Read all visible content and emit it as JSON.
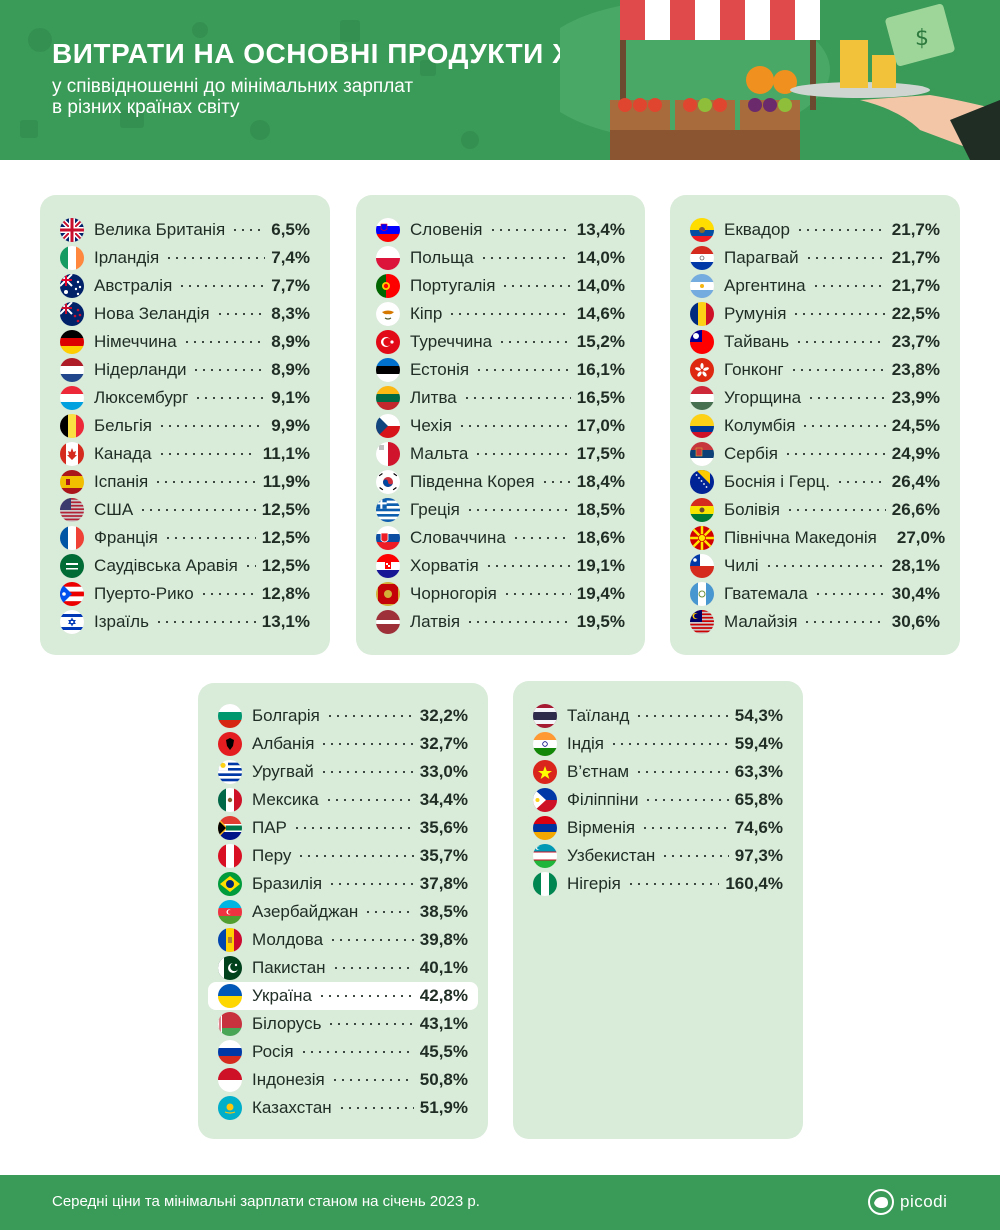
{
  "header": {
    "title": "ВИТРАТИ НА ОСНОВНІ ПРОДУКТИ ХАРЧУВАННЯ",
    "subtitle_line1": "у співвідношенні до мінімальних зарплат",
    "subtitle_line2": "в різних країнах світу"
  },
  "colors": {
    "accent": "#3a9a57",
    "card": "#d9ebd9",
    "text": "#1f2d25"
  },
  "cards": [
    {
      "items": [
        {
          "name": "Велика Британія",
          "value": "6,5%",
          "flag": "gb"
        },
        {
          "name": "Ірландія",
          "value": "7,4%",
          "flag": "ie"
        },
        {
          "name": "Австралія",
          "value": "7,7%",
          "flag": "au"
        },
        {
          "name": "Нова Зеландія",
          "value": "8,3%",
          "flag": "nz"
        },
        {
          "name": "Німеччина",
          "value": "8,9%",
          "flag": "de"
        },
        {
          "name": "Нідерланди",
          "value": "8,9%",
          "flag": "nl"
        },
        {
          "name": "Люксембург",
          "value": "9,1%",
          "flag": "lu"
        },
        {
          "name": "Бельгія",
          "value": "9,9%",
          "flag": "be"
        },
        {
          "name": "Канада",
          "value": "11,1%",
          "flag": "ca"
        },
        {
          "name": "Іспанія",
          "value": "11,9%",
          "flag": "es"
        },
        {
          "name": "США",
          "value": "12,5%",
          "flag": "us"
        },
        {
          "name": "Франція",
          "value": "12,5%",
          "flag": "fr"
        },
        {
          "name": "Саудівська Аравія",
          "value": "12,5%",
          "flag": "sa"
        },
        {
          "name": "Пуерто-Рико",
          "value": "12,8%",
          "flag": "pr"
        },
        {
          "name": "Ізраїль",
          "value": "13,1%",
          "flag": "il"
        }
      ]
    },
    {
      "items": [
        {
          "name": "Словенія",
          "value": "13,4%",
          "flag": "si"
        },
        {
          "name": "Польща",
          "value": "14,0%",
          "flag": "pl"
        },
        {
          "name": "Португалія",
          "value": "14,0%",
          "flag": "pt"
        },
        {
          "name": "Кіпр",
          "value": "14,6%",
          "flag": "cy"
        },
        {
          "name": "Туреччина",
          "value": "15,2%",
          "flag": "tr"
        },
        {
          "name": "Естонія",
          "value": "16,1%",
          "flag": "ee"
        },
        {
          "name": "Литва",
          "value": "16,5%",
          "flag": "lt"
        },
        {
          "name": "Чехія",
          "value": "17,0%",
          "flag": "cz"
        },
        {
          "name": "Мальта",
          "value": "17,5%",
          "flag": "mt"
        },
        {
          "name": "Південна Корея",
          "value": "18,4%",
          "flag": "kr"
        },
        {
          "name": "Греція",
          "value": "18,5%",
          "flag": "gr"
        },
        {
          "name": "Словаччина",
          "value": "18,6%",
          "flag": "sk"
        },
        {
          "name": "Хорватія",
          "value": "19,1%",
          "flag": "hr"
        },
        {
          "name": "Чорногорія",
          "value": "19,4%",
          "flag": "me"
        },
        {
          "name": "Латвія",
          "value": "19,5%",
          "flag": "lv"
        }
      ]
    },
    {
      "items": [
        {
          "name": "Еквадор",
          "value": "21,7%",
          "flag": "ec"
        },
        {
          "name": "Парагвай",
          "value": "21,7%",
          "flag": "py"
        },
        {
          "name": "Аргентина",
          "value": "21,7%",
          "flag": "ar"
        },
        {
          "name": "Румунія",
          "value": "22,5%",
          "flag": "ro"
        },
        {
          "name": "Тайвань",
          "value": "23,7%",
          "flag": "tw"
        },
        {
          "name": "Гонконг",
          "value": "23,8%",
          "flag": "hk"
        },
        {
          "name": "Угорщина",
          "value": "23,9%",
          "flag": "hu"
        },
        {
          "name": "Колумбія",
          "value": "24,5%",
          "flag": "co"
        },
        {
          "name": "Сербія",
          "value": "24,9%",
          "flag": "rs"
        },
        {
          "name": "Боснія і Герц.",
          "value": "26,4%",
          "flag": "ba"
        },
        {
          "name": "Болівія",
          "value": "26,6%",
          "flag": "bo"
        },
        {
          "name": "Північна Македонія",
          "value": "27,0%",
          "flag": "mk"
        },
        {
          "name": "Чилі",
          "value": "28,1%",
          "flag": "cl"
        },
        {
          "name": "Гватемала",
          "value": "30,4%",
          "flag": "gt"
        },
        {
          "name": "Малайзія",
          "value": "30,6%",
          "flag": "my"
        }
      ]
    },
    {
      "items": [
        {
          "name": "Болгарія",
          "value": "32,2%",
          "flag": "bg"
        },
        {
          "name": "Албанія",
          "value": "32,7%",
          "flag": "al"
        },
        {
          "name": "Уругвай",
          "value": "33,0%",
          "flag": "uy"
        },
        {
          "name": "Мексика",
          "value": "34,4%",
          "flag": "mx"
        },
        {
          "name": "ПАР",
          "value": "35,6%",
          "flag": "za"
        },
        {
          "name": "Перу",
          "value": "35,7%",
          "flag": "pe"
        },
        {
          "name": "Бразилія",
          "value": "37,8%",
          "flag": "br"
        },
        {
          "name": "Азербайджан",
          "value": "38,5%",
          "flag": "az"
        },
        {
          "name": "Молдова",
          "value": "39,8%",
          "flag": "md"
        },
        {
          "name": "Пакистан",
          "value": "40,1%",
          "flag": "pk"
        },
        {
          "name": "Україна",
          "value": "42,8%",
          "flag": "ua",
          "highlight": true
        },
        {
          "name": "Білорусь",
          "value": "43,1%",
          "flag": "by"
        },
        {
          "name": "Росія",
          "value": "45,5%",
          "flag": "ru"
        },
        {
          "name": "Індонезія",
          "value": "50,8%",
          "flag": "id"
        },
        {
          "name": "Казахстан",
          "value": "51,9%",
          "flag": "kz"
        }
      ]
    },
    {
      "items": [
        {
          "name": "Таїланд",
          "value": "54,3%",
          "flag": "th"
        },
        {
          "name": "Індія",
          "value": "59,4%",
          "flag": "in"
        },
        {
          "name": "В’єтнам",
          "value": "63,3%",
          "flag": "vn"
        },
        {
          "name": "Філіппіни",
          "value": "65,8%",
          "flag": "ph"
        },
        {
          "name": "Вірменія",
          "value": "74,6%",
          "flag": "am"
        },
        {
          "name": "Узбекистан",
          "value": "97,3%",
          "flag": "uz"
        },
        {
          "name": "Нігерія",
          "value": "160,4%",
          "flag": "ng"
        }
      ]
    }
  ],
  "footer": {
    "note": "Середні ціни та мінімальні зарплати станом на січень 2023 р.",
    "logo_text": "picodi",
    "logo_icon": "piggy-bank-icon"
  }
}
